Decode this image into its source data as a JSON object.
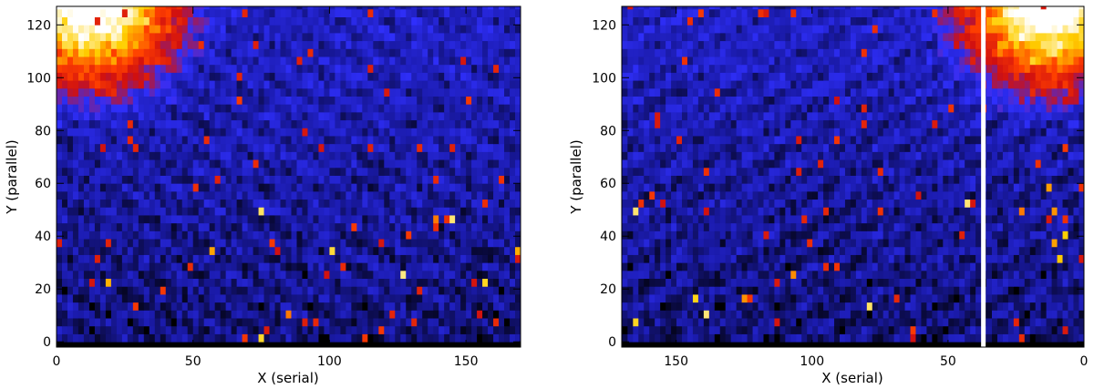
{
  "chart_data": [
    {
      "type": "heatmap",
      "xlabel": "X (serial)",
      "ylabel": "Y (parallel)",
      "xlim": [
        0,
        170
      ],
      "ylim": [
        -2,
        127
      ],
      "x_reversed": false,
      "xticks": [
        0,
        50,
        100,
        150
      ],
      "yticks": [
        0,
        20,
        40,
        60,
        80,
        100,
        120
      ],
      "colormap": [
        "#000000",
        "#1a1aa8",
        "#3030ff",
        "#d01010",
        "#ff4000",
        "#ffd000",
        "#ffffff"
      ],
      "hot_region": {
        "x_center": 12,
        "y_center": 127,
        "x_extent": 45,
        "y_extent": 45
      },
      "gap_column": null
    },
    {
      "type": "heatmap",
      "xlabel": "X (serial)",
      "ylabel": "Y (parallel)",
      "xlim": [
        170,
        0
      ],
      "ylim": [
        -2,
        127
      ],
      "x_reversed": true,
      "xticks": [
        150,
        100,
        50,
        0
      ],
      "yticks": [
        0,
        20,
        40,
        60,
        80,
        100,
        120
      ],
      "colormap": [
        "#000000",
        "#1a1aa8",
        "#3030ff",
        "#d01010",
        "#ff4000",
        "#ffd000",
        "#ffffff"
      ],
      "hot_region": {
        "x_center": 12,
        "y_center": 127,
        "x_extent": 45,
        "y_extent": 45
      },
      "gap_column": 37
    }
  ]
}
